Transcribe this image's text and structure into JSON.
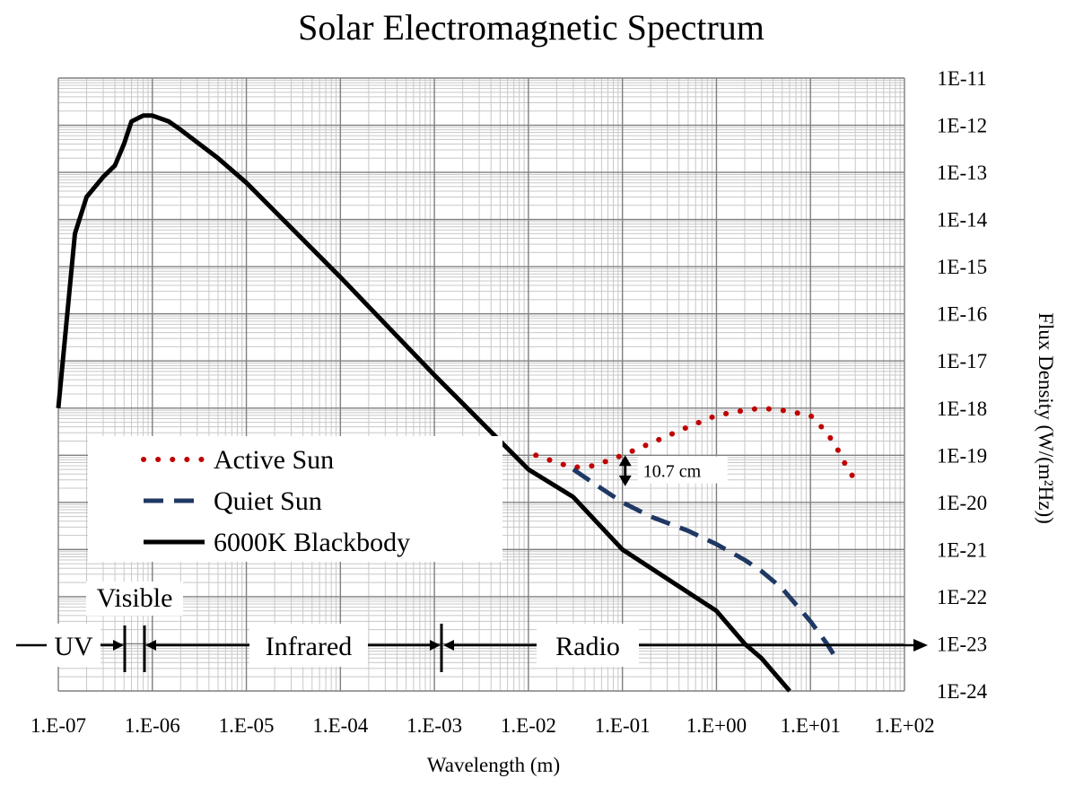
{
  "chart_data": {
    "type": "line",
    "title": "Solar Electromagnetic Spectrum",
    "xlabel": "Wavelength (m)",
    "ylabel": "Flux Density (W/(m²Hz))",
    "x_scale": "log",
    "y_scale": "log",
    "xlim": [
      1e-07,
      100
    ],
    "ylim": [
      1e-24,
      1e-11
    ],
    "y_axis_side": "right",
    "grid": true,
    "legend_position": "bottom-left",
    "x_tick_labels": [
      "1.E-07",
      "1.E-06",
      "1.E-05",
      "1.E-04",
      "1.E-03",
      "1.E-02",
      "1.E-01",
      "1.E+00",
      "1.E+01",
      "1.E+02"
    ],
    "y_tick_labels": [
      "1E-11",
      "1E-12",
      "1E-13",
      "1E-14",
      "1E-15",
      "1E-16",
      "1E-17",
      "1E-18",
      "1E-19",
      "1E-20",
      "1E-21",
      "1E-22",
      "1E-23",
      "1E-24"
    ],
    "series": [
      {
        "name": "6000K Blackbody",
        "style": "solid",
        "color": "#000000",
        "x": [
          1e-07,
          1.5e-07,
          2e-07,
          3e-07,
          4e-07,
          5e-07,
          6e-07,
          8e-07,
          1e-06,
          1.5e-06,
          2e-06,
          5e-06,
          1e-05,
          0.0001,
          0.001,
          0.01,
          0.03,
          0.1,
          1,
          2,
          3,
          6
        ],
        "y": [
          1e-18,
          5e-15,
          3e-14,
          8e-14,
          1.4e-13,
          4e-13,
          1.2e-12,
          1.6e-12,
          1.6e-12,
          1.2e-12,
          8e-13,
          2e-13,
          6e-14,
          6e-16,
          5e-18,
          5e-20,
          1.3e-20,
          1e-21,
          5e-23,
          1e-23,
          5e-24,
          1e-24
        ]
      },
      {
        "name": "Active Sun",
        "style": "dotted",
        "color": "#c00000",
        "x": [
          0.012,
          0.02,
          0.03,
          0.05,
          0.1,
          0.2,
          0.5,
          1,
          2,
          3,
          5,
          10,
          15,
          20,
          25,
          30
        ],
        "y": [
          1e-19,
          7e-20,
          5.5e-20,
          6e-20,
          1e-19,
          1.8e-19,
          4e-19,
          7e-19,
          9e-19,
          1e-18,
          9e-19,
          7e-19,
          3e-19,
          1.2e-19,
          5e-20,
          3e-20
        ]
      },
      {
        "name": "Quiet Sun",
        "style": "dashed",
        "color": "#1f3864",
        "x": [
          0.03,
          0.05,
          0.1,
          0.2,
          0.5,
          1,
          2,
          3,
          5,
          10,
          15,
          20
        ],
        "y": [
          5e-20,
          2.5e-20,
          1e-20,
          5e-21,
          2.5e-21,
          1.3e-21,
          6e-22,
          3.5e-22,
          1.5e-22,
          3e-23,
          1e-23,
          4e-24
        ]
      }
    ],
    "annotations": [
      {
        "text": "10.7 cm",
        "x": 0.107,
        "y_from": 1e-19,
        "y_to": 2.2e-20
      }
    ],
    "regions": [
      {
        "name": "UV"
      },
      {
        "name": "Visible"
      },
      {
        "name": "Infrared"
      },
      {
        "name": "Radio"
      }
    ]
  }
}
